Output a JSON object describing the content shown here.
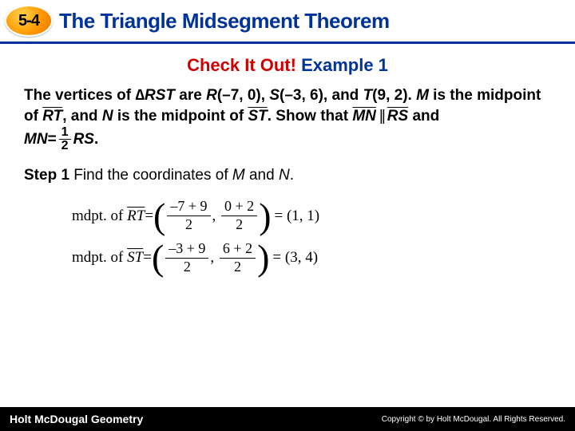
{
  "header": {
    "section_number": "5-4",
    "title": "The Triangle Midsegment Theorem",
    "title_color": "#003399",
    "border_color": "#003399",
    "badge_colors": [
      "#ffd24d",
      "#ff9900",
      "#e67300"
    ]
  },
  "subtitle": {
    "part1": "Check It Out!",
    "part2": " Example 1",
    "color1": "#cc0000",
    "color2": "#003399"
  },
  "problem": {
    "line_a": "The vertices of ∆",
    "tri": "RST",
    "line_b": " are ",
    "R": "R",
    "R_coord": "(–7, 0), ",
    "S": "S",
    "S_coord": "(–3, 6), ",
    "and1": "and ",
    "T": "T",
    "T_coord": "(9, 2). ",
    "M": "M",
    "mid1": " is the midpoint of ",
    "seg_RT": "RT",
    "comma_and": ", and ",
    "N": "N",
    "mid2": " is the midpoint of ",
    "seg_ST": "ST",
    "show": ". Show that ",
    "seg_MN": "MN",
    "seg_RS": "RS",
    "andword": " and",
    "eq_MN": "MN",
    "eq_sign": " = ",
    "frac_num": "1",
    "frac_den": "2",
    "eq_RS": "RS",
    "period": "."
  },
  "step": {
    "label": "Step 1",
    "text": " Find the coordinates of ",
    "M": "M",
    "and": " and ",
    "N": "N",
    "dot": "."
  },
  "midpoints": {
    "rt": {
      "label": "mdpt. of ",
      "seg": "RT",
      "eq": " = ",
      "x_expr": "–7 + 9",
      "y_expr": "0 + 2",
      "den": "2",
      "result": " = (1, 1)"
    },
    "st": {
      "label": "mdpt. of ",
      "seg": "ST",
      "eq": " = ",
      "x_expr": "–3 + 9",
      "y_expr": "6 + 2",
      "den": "2",
      "result": " = (3, 4)"
    }
  },
  "footer": {
    "left": "Holt McDougal Geometry",
    "right": "Copyright © by Holt McDougal. All Rights Reserved."
  }
}
